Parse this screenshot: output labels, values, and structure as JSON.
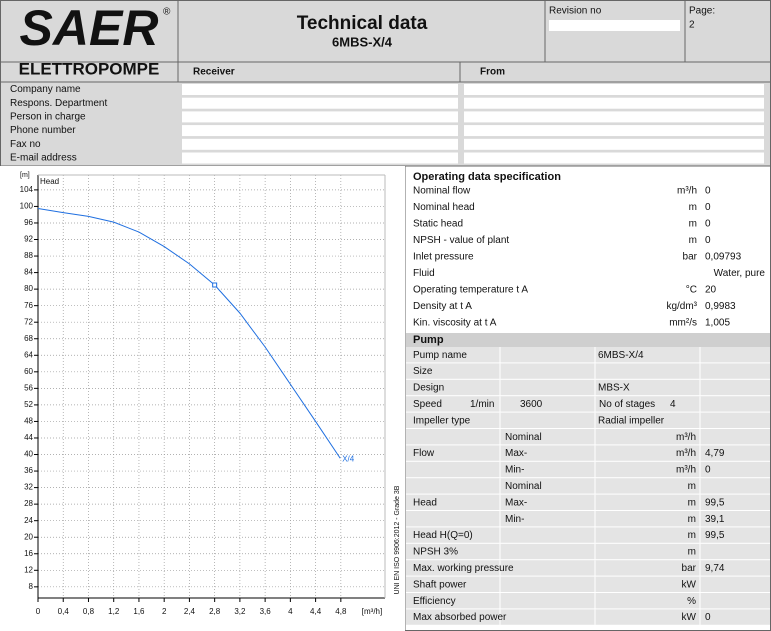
{
  "header": {
    "logo": "SAER",
    "logo_mark": "®",
    "logo_subtitle": "ELETTROPOMPE",
    "title": "Technical data",
    "subtitle": "6MBS-X/4",
    "revision_label": "Revision no",
    "page_label": "Page:",
    "page_number": "2"
  },
  "contacts": {
    "receiver_label": "Receiver",
    "from_label": "From",
    "fields": [
      "Company name",
      "Respons. Department",
      "Person in charge",
      "Phone number",
      "Fax no",
      "E-mail address"
    ]
  },
  "chart_data": {
    "type": "line",
    "y_unit": "[m]",
    "y_label": "Head",
    "x_unit": "[m³/h]",
    "note": "UNI EN ISO 9906:2012 - Grade 3B",
    "x": [
      0,
      0.4,
      0.8,
      1.2,
      1.6,
      2,
      2.4,
      2.8,
      3.2,
      3.6,
      4,
      4.4,
      4.79
    ],
    "series": [
      {
        "name": "X/4",
        "color": "#1f6fe0",
        "values": [
          99.5,
          98.5,
          97.6,
          96.2,
          93.8,
          90.3,
          86.1,
          81,
          74.2,
          66,
          57,
          48,
          39.1
        ]
      }
    ],
    "operating_point": {
      "x": 2.8,
      "y": 81
    },
    "xlim": [
      0,
      5.5
    ],
    "ylim": [
      5.3,
      107.6
    ],
    "xticks": [
      0,
      {
        "value": 0.4,
        "label": "0,4"
      },
      {
        "value": 0.8,
        "label": "0,8"
      },
      {
        "value": 1.2,
        "label": "1,2"
      },
      {
        "value": 1.6,
        "label": "1,6"
      },
      2,
      {
        "value": 2.4,
        "label": "2,4"
      },
      {
        "value": 2.8,
        "label": "2,8"
      },
      {
        "value": 3.2,
        "label": "3,2"
      },
      {
        "value": 3.6,
        "label": "3,6"
      },
      4,
      {
        "value": 4.4,
        "label": "4,4"
      },
      {
        "value": 4.8,
        "label": "4,8"
      }
    ],
    "yticks": [
      8,
      12,
      16,
      20,
      24,
      28,
      32,
      36,
      40,
      44,
      48,
      52,
      56,
      60,
      64,
      68,
      72,
      76,
      80,
      84,
      88,
      92,
      96,
      100,
      104
    ],
    "grid": true
  },
  "operating_data": {
    "title": "Operating data specification",
    "rows": [
      {
        "label": "Nominal flow",
        "unit": "m³/h",
        "value": "0"
      },
      {
        "label": "Nominal head",
        "unit": "m",
        "value": "0"
      },
      {
        "label": "Static head",
        "unit": "m",
        "value": "0"
      },
      {
        "label": "NPSH - value of plant",
        "unit": "m",
        "value": "0"
      },
      {
        "label": "Inlet pressure",
        "unit": "bar",
        "value": "0,09793"
      },
      {
        "label": "Fluid",
        "value": "Water, pure"
      },
      {
        "label": "Operating temperature t A",
        "unit": "°C",
        "value": "20"
      },
      {
        "label": "Density at t A",
        "unit": "kg/dm³",
        "value": "0,9983"
      },
      {
        "label": "Kin. viscosity at t A",
        "unit": "mm²/s",
        "value": "1,005"
      }
    ]
  },
  "pump": {
    "title": "Pump",
    "rows": [
      {
        "label": "Pump name",
        "text": "6MBS-X/4"
      },
      {
        "label": "Size"
      },
      {
        "label": "Design",
        "text": "MBS-X"
      },
      {
        "label": "Speed",
        "speed_unit": "1/min",
        "speed": "3600",
        "stages_label": "No of stages",
        "stages": "4"
      },
      {
        "label": "Impeller type",
        "text": "Radial impeller"
      },
      {
        "group": "Flow",
        "rows": [
          {
            "sub": "Nominal",
            "unit": "m³/h"
          },
          {
            "sub": "Max-",
            "unit": "m³/h",
            "value": "4,79"
          },
          {
            "sub": "Min-",
            "unit": "m³/h",
            "value": "0"
          }
        ]
      },
      {
        "group": "Head",
        "rows": [
          {
            "sub": "Nominal",
            "unit": "m"
          },
          {
            "sub": "Max-",
            "unit": "m",
            "value": "99,5"
          },
          {
            "sub": "Min-",
            "unit": "m",
            "value": "39,1"
          }
        ]
      },
      {
        "label": "Head H(Q=0)",
        "unit": "m",
        "value": "99,5"
      },
      {
        "label": "NPSH 3%",
        "unit": "m"
      },
      {
        "label": "Max. working pressure",
        "unit": "bar",
        "value": "9,74"
      },
      {
        "label": "Shaft power",
        "unit": "kW"
      },
      {
        "label": "Efficiency",
        "unit": "%"
      },
      {
        "label": "Max absorbed power",
        "unit": "kW",
        "value": "0"
      }
    ]
  }
}
